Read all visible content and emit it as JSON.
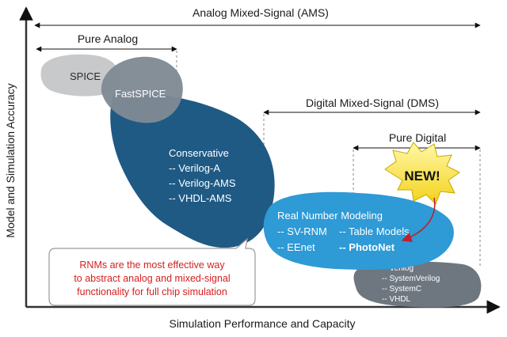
{
  "axes": {
    "y_label": "Model and Simulation Accuracy",
    "x_label": "Simulation Performance and Capacity"
  },
  "ranges": {
    "ams": "Analog Mixed-Signal (AMS)",
    "pure_analog": "Pure Analog",
    "dms": "Digital Mixed-Signal (DMS)",
    "pure_digital": "Pure Digital"
  },
  "regions": {
    "spice": "SPICE",
    "fastspice": "FastSPICE",
    "conservative": {
      "title": "Conservative",
      "items": [
        "-- Verilog-A",
        "-- Verilog-AMS",
        "-- VHDL-AMS"
      ]
    },
    "rnm": {
      "title": "Real Number Modeling",
      "items": [
        "-- SV-RNM",
        "-- Table Models",
        "-- EEnet",
        "-- PhotoNet"
      ]
    },
    "digital": {
      "items": [
        "-- Verilog",
        "-- SystemVerilog",
        "-- SystemC",
        "-- VHDL"
      ]
    }
  },
  "badge": {
    "text": "NEW!"
  },
  "callout": {
    "lines": [
      "RNMs are the most effective way",
      "to abstract analog and mixed-signal",
      "functionality for full chip simulation"
    ]
  },
  "colors": {
    "spice": "#c8c9cb",
    "fastspice": "#7f8a94",
    "conservative": "#1f5a85",
    "rnm": "#2e9ad6",
    "digital": "#6e7780",
    "highlight": "#f7ef3a",
    "callout_text": "#d42020"
  }
}
